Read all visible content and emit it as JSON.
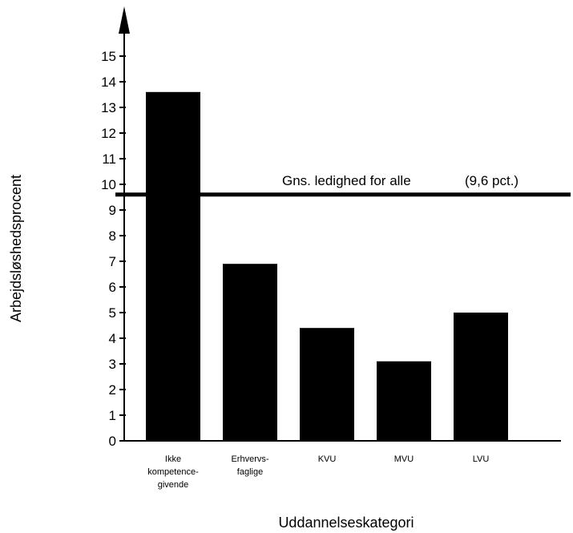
{
  "chart_data": {
    "type": "bar",
    "categories": [
      [
        "Ikke",
        "kompetence-",
        "givende"
      ],
      [
        "Erhvervs-",
        "faglige"
      ],
      [
        "KVU"
      ],
      [
        "MVU"
      ],
      [
        "LVU"
      ]
    ],
    "values": [
      13.6,
      6.9,
      4.4,
      3.1,
      5.0
    ],
    "ylabel": "Arbejdsløshedsprocent",
    "xlabel": "Uddannelseskategori",
    "ylim": [
      0,
      15
    ],
    "yticks": [
      0,
      1,
      2,
      3,
      4,
      5,
      6,
      7,
      8,
      9,
      10,
      11,
      12,
      13,
      14,
      15
    ],
    "reference_line": {
      "value": 9.6,
      "label": "Gns. ledighed for alle",
      "value_label": "(9,6 pct.)"
    },
    "bar_color": "#000000",
    "grid": false,
    "legend": "none"
  }
}
